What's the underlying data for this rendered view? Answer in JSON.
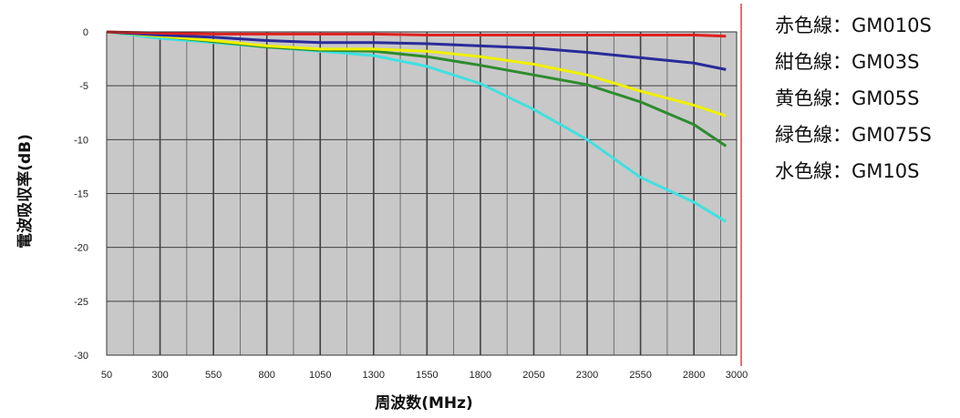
{
  "chart_data": {
    "type": "line",
    "title": "",
    "xlabel": "周波数(MHz)",
    "ylabel": "電波吸収率(dB)",
    "xlim": [
      50,
      3000
    ],
    "ylim": [
      -30,
      0
    ],
    "x_ticks": [
      50,
      300,
      550,
      800,
      1050,
      1300,
      1550,
      1800,
      2050,
      2300,
      2550,
      2800,
      3000
    ],
    "y_ticks": [
      0,
      -5,
      -10,
      -15,
      -20,
      -25,
      -30
    ],
    "grid": true,
    "legend_position": "right",
    "background_color": "#c8c8c8",
    "series": [
      {
        "name": "赤色線：GM010S",
        "color": "#e02020",
        "x": [
          50,
          300,
          550,
          800,
          1050,
          1300,
          1550,
          1800,
          2050,
          2300,
          2550,
          2800,
          2950
        ],
        "y": [
          0,
          -0.1,
          -0.2,
          -0.2,
          -0.2,
          -0.2,
          -0.3,
          -0.3,
          -0.3,
          -0.3,
          -0.3,
          -0.3,
          -0.4
        ]
      },
      {
        "name": "紺色線：GM03S",
        "color": "#2a2a9a",
        "x": [
          50,
          300,
          550,
          800,
          1050,
          1300,
          1550,
          1800,
          2050,
          2300,
          2550,
          2800,
          2950
        ],
        "y": [
          0,
          -0.3,
          -0.5,
          -0.8,
          -1.0,
          -1.0,
          -1.1,
          -1.3,
          -1.5,
          -1.9,
          -2.4,
          -2.9,
          -3.5
        ]
      },
      {
        "name": "黄色線：GM05S",
        "color": "#f0f000",
        "x": [
          50,
          300,
          550,
          800,
          1050,
          1300,
          1550,
          1800,
          2050,
          2300,
          2550,
          2800,
          2950
        ],
        "y": [
          0,
          -0.4,
          -0.8,
          -1.3,
          -1.6,
          -1.6,
          -1.8,
          -2.3,
          -3.0,
          -4.0,
          -5.5,
          -6.8,
          -7.8
        ]
      },
      {
        "name": "緑色線：GM075S",
        "color": "#2e8b2e",
        "x": [
          50,
          300,
          550,
          800,
          1050,
          1300,
          1550,
          1800,
          2050,
          2300,
          2550,
          2800,
          2950
        ],
        "y": [
          0,
          -0.4,
          -0.9,
          -1.4,
          -1.7,
          -1.8,
          -2.3,
          -3.1,
          -4.0,
          -4.9,
          -6.5,
          -8.6,
          -10.6
        ]
      },
      {
        "name": "水色線：GM10S",
        "color": "#40e0e0",
        "x": [
          50,
          300,
          550,
          800,
          1050,
          1300,
          1550,
          1800,
          2050,
          2300,
          2550,
          2800,
          2950
        ],
        "y": [
          0,
          -0.6,
          -1.0,
          -1.4,
          -1.8,
          -2.2,
          -3.2,
          -4.8,
          -7.2,
          -10.0,
          -13.5,
          -15.8,
          -17.6
        ]
      }
    ]
  }
}
